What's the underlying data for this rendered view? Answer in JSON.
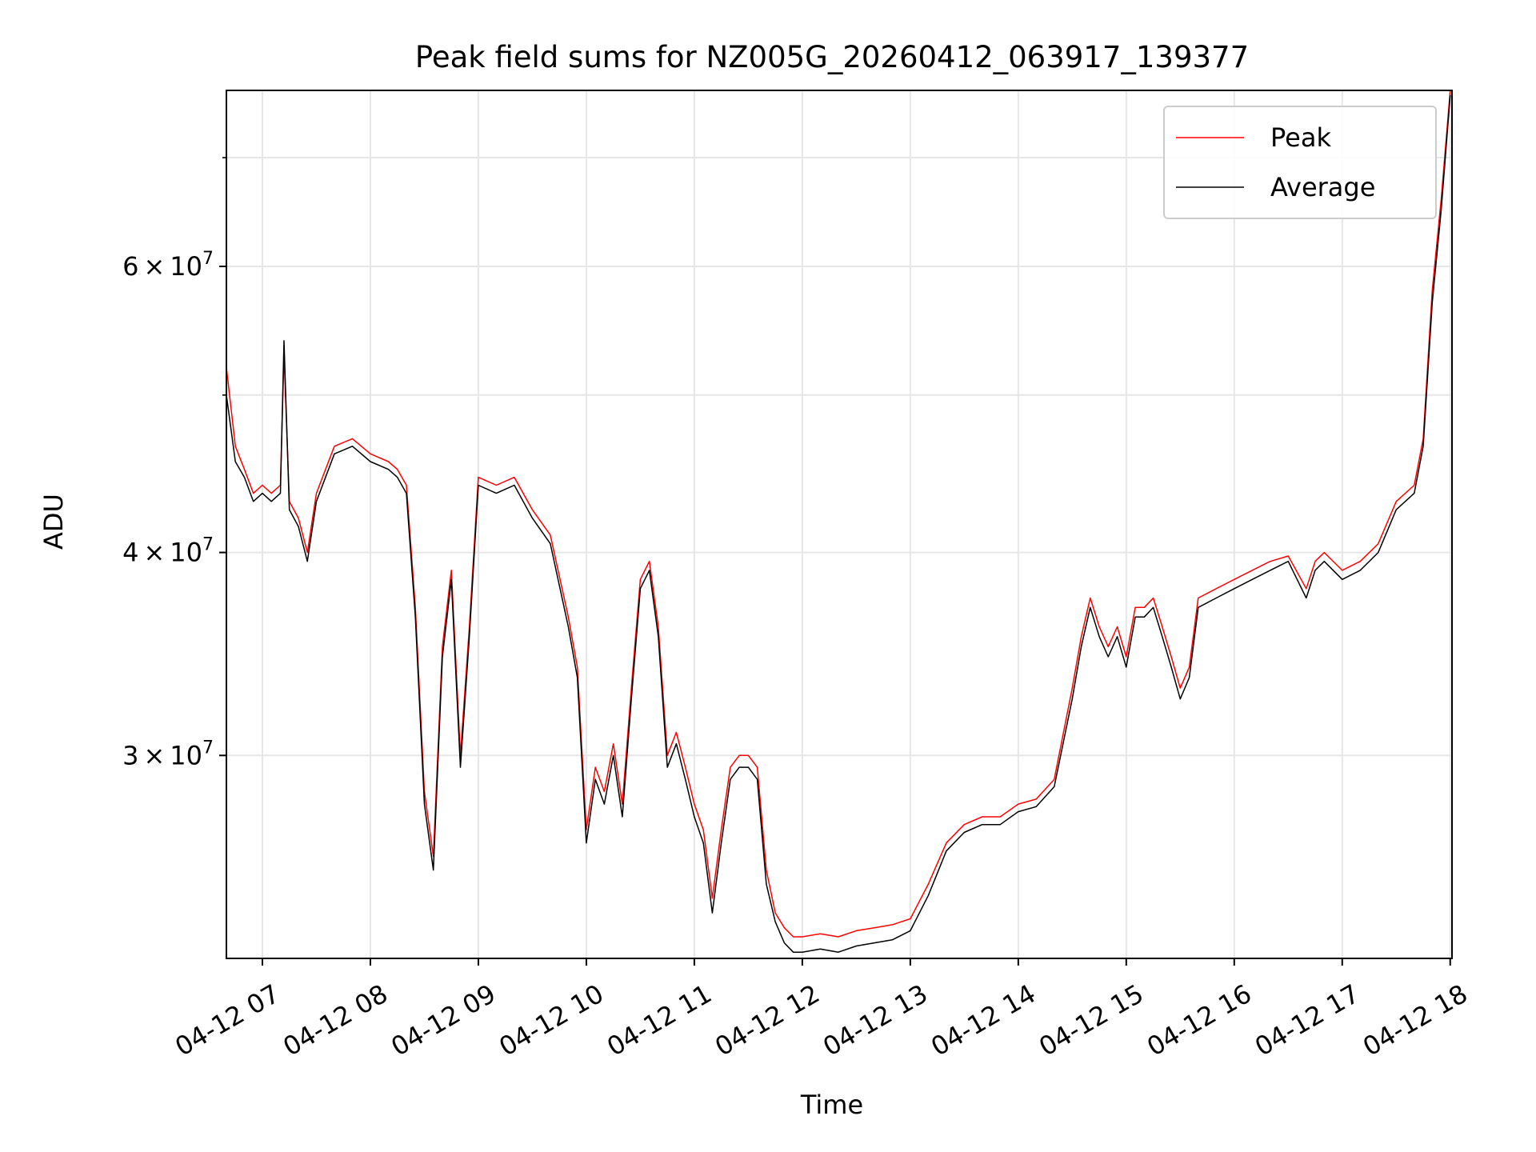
{
  "chart_data": {
    "type": "line",
    "title": "Peak field sums for NZ005G_20260412_063917_139377",
    "xlabel": "Time",
    "ylabel": "ADU",
    "y_scale": "log",
    "grid": true,
    "legend_position": "upper right",
    "xlim": [
      "2026-04-12 06:40",
      "2026-04-12 18:01"
    ],
    "ylim": [
      22500000,
      77000000
    ],
    "x_ticks": [
      {
        "value": "2026-04-12 07:00",
        "label": "04-12 07"
      },
      {
        "value": "2026-04-12 08:00",
        "label": "04-12 08"
      },
      {
        "value": "2026-04-12 09:00",
        "label": "04-12 09"
      },
      {
        "value": "2026-04-12 10:00",
        "label": "04-12 10"
      },
      {
        "value": "2026-04-12 11:00",
        "label": "04-12 11"
      },
      {
        "value": "2026-04-12 12:00",
        "label": "04-12 12"
      },
      {
        "value": "2026-04-12 13:00",
        "label": "04-12 13"
      },
      {
        "value": "2026-04-12 14:00",
        "label": "04-12 14"
      },
      {
        "value": "2026-04-12 15:00",
        "label": "04-12 15"
      },
      {
        "value": "2026-04-12 16:00",
        "label": "04-12 16"
      },
      {
        "value": "2026-04-12 17:00",
        "label": "04-12 17"
      },
      {
        "value": "2026-04-12 18:00",
        "label": "04-12 18"
      }
    ],
    "y_ticks": [
      {
        "value": 30000000,
        "base": "3",
        "exp": "7"
      },
      {
        "value": 40000000,
        "base": "4",
        "exp": "7"
      },
      {
        "value": 60000000,
        "base": "6",
        "exp": "7"
      }
    ],
    "y_minor_ticks": [
      50000000,
      70000000
    ],
    "series": [
      {
        "name": "Peak",
        "color": "#ff0000",
        "x": [
          "2026-04-12 06:40",
          "2026-04-12 06:45",
          "2026-04-12 06:50",
          "2026-04-12 06:55",
          "2026-04-12 07:00",
          "2026-04-12 07:05",
          "2026-04-12 07:10",
          "2026-04-12 07:12",
          "2026-04-12 07:15",
          "2026-04-12 07:20",
          "2026-04-12 07:25",
          "2026-04-12 07:30",
          "2026-04-12 07:40",
          "2026-04-12 07:50",
          "2026-04-12 08:00",
          "2026-04-12 08:10",
          "2026-04-12 08:15",
          "2026-04-12 08:20",
          "2026-04-12 08:25",
          "2026-04-12 08:30",
          "2026-04-12 08:35",
          "2026-04-12 08:40",
          "2026-04-12 08:45",
          "2026-04-12 08:50",
          "2026-04-12 08:55",
          "2026-04-12 09:00",
          "2026-04-12 09:10",
          "2026-04-12 09:20",
          "2026-04-12 09:30",
          "2026-04-12 09:40",
          "2026-04-12 09:50",
          "2026-04-12 09:55",
          "2026-04-12 10:00",
          "2026-04-12 10:05",
          "2026-04-12 10:10",
          "2026-04-12 10:15",
          "2026-04-12 10:20",
          "2026-04-12 10:25",
          "2026-04-12 10:30",
          "2026-04-12 10:35",
          "2026-04-12 10:40",
          "2026-04-12 10:45",
          "2026-04-12 10:50",
          "2026-04-12 10:55",
          "2026-04-12 11:00",
          "2026-04-12 11:05",
          "2026-04-12 11:10",
          "2026-04-12 11:15",
          "2026-04-12 11:20",
          "2026-04-12 11:25",
          "2026-04-12 11:30",
          "2026-04-12 11:35",
          "2026-04-12 11:40",
          "2026-04-12 11:45",
          "2026-04-12 11:50",
          "2026-04-12 11:55",
          "2026-04-12 12:00",
          "2026-04-12 12:10",
          "2026-04-12 12:20",
          "2026-04-12 12:30",
          "2026-04-12 12:40",
          "2026-04-12 12:50",
          "2026-04-12 13:00",
          "2026-04-12 13:10",
          "2026-04-12 13:20",
          "2026-04-12 13:30",
          "2026-04-12 13:40",
          "2026-04-12 13:50",
          "2026-04-12 14:00",
          "2026-04-12 14:10",
          "2026-04-12 14:20",
          "2026-04-12 14:30",
          "2026-04-12 14:35",
          "2026-04-12 14:40",
          "2026-04-12 14:45",
          "2026-04-12 14:50",
          "2026-04-12 14:55",
          "2026-04-12 15:00",
          "2026-04-12 15:05",
          "2026-04-12 15:10",
          "2026-04-12 15:15",
          "2026-04-12 15:20",
          "2026-04-12 15:25",
          "2026-04-12 15:30",
          "2026-04-12 15:35",
          "2026-04-12 15:40",
          "2026-04-12 15:50",
          "2026-04-12 16:00",
          "2026-04-12 16:10",
          "2026-04-12 16:20",
          "2026-04-12 16:30",
          "2026-04-12 16:40",
          "2026-04-12 16:45",
          "2026-04-12 16:50",
          "2026-04-12 17:00",
          "2026-04-12 17:10",
          "2026-04-12 17:20",
          "2026-04-12 17:30",
          "2026-04-12 17:40",
          "2026-04-12 17:45",
          "2026-04-12 17:50",
          "2026-04-12 17:55",
          "2026-04-12 18:00"
        ],
        "values": [
          52000000,
          46500000,
          45000000,
          43500000,
          44000000,
          43500000,
          44000000,
          53000000,
          43000000,
          42000000,
          40000000,
          43500000,
          46500000,
          47000000,
          46000000,
          45500000,
          45000000,
          44000000,
          37000000,
          28500000,
          26000000,
          35000000,
          39000000,
          30000000,
          36000000,
          44500000,
          44000000,
          44500000,
          42500000,
          41000000,
          36500000,
          34000000,
          27000000,
          29500000,
          28500000,
          30500000,
          28000000,
          33000000,
          38500000,
          39500000,
          36000000,
          30000000,
          31000000,
          29500000,
          28000000,
          27000000,
          24500000,
          27000000,
          29500000,
          30000000,
          30000000,
          29500000,
          25500000,
          24000000,
          23500000,
          23200000,
          23200000,
          23300000,
          23200000,
          23400000,
          23500000,
          23600000,
          23800000,
          25000000,
          26500000,
          27200000,
          27500000,
          27500000,
          28000000,
          28200000,
          29000000,
          33000000,
          35500000,
          37500000,
          36000000,
          35000000,
          36000000,
          34500000,
          37000000,
          37000000,
          37500000,
          36000000,
          34500000,
          33000000,
          34000000,
          37500000,
          38000000,
          38500000,
          39000000,
          39500000,
          39800000,
          38000000,
          39500000,
          40000000,
          39000000,
          39500000,
          40500000,
          43000000,
          44000000,
          47000000,
          58000000,
          66000000,
          77000000
        ]
      },
      {
        "name": "Average",
        "color": "#000000",
        "x": [
          "2026-04-12 06:40",
          "2026-04-12 06:45",
          "2026-04-12 06:50",
          "2026-04-12 06:55",
          "2026-04-12 07:00",
          "2026-04-12 07:05",
          "2026-04-12 07:10",
          "2026-04-12 07:12",
          "2026-04-12 07:15",
          "2026-04-12 07:20",
          "2026-04-12 07:25",
          "2026-04-12 07:30",
          "2026-04-12 07:40",
          "2026-04-12 07:50",
          "2026-04-12 08:00",
          "2026-04-12 08:10",
          "2026-04-12 08:15",
          "2026-04-12 08:20",
          "2026-04-12 08:25",
          "2026-04-12 08:30",
          "2026-04-12 08:35",
          "2026-04-12 08:40",
          "2026-04-12 08:45",
          "2026-04-12 08:50",
          "2026-04-12 08:55",
          "2026-04-12 09:00",
          "2026-04-12 09:10",
          "2026-04-12 09:20",
          "2026-04-12 09:30",
          "2026-04-12 09:40",
          "2026-04-12 09:50",
          "2026-04-12 09:55",
          "2026-04-12 10:00",
          "2026-04-12 10:05",
          "2026-04-12 10:10",
          "2026-04-12 10:15",
          "2026-04-12 10:20",
          "2026-04-12 10:25",
          "2026-04-12 10:30",
          "2026-04-12 10:35",
          "2026-04-12 10:40",
          "2026-04-12 10:45",
          "2026-04-12 10:50",
          "2026-04-12 10:55",
          "2026-04-12 11:00",
          "2026-04-12 11:05",
          "2026-04-12 11:10",
          "2026-04-12 11:15",
          "2026-04-12 11:20",
          "2026-04-12 11:25",
          "2026-04-12 11:30",
          "2026-04-12 11:35",
          "2026-04-12 11:40",
          "2026-04-12 11:45",
          "2026-04-12 11:50",
          "2026-04-12 11:55",
          "2026-04-12 12:00",
          "2026-04-12 12:10",
          "2026-04-12 12:20",
          "2026-04-12 12:30",
          "2026-04-12 12:40",
          "2026-04-12 12:50",
          "2026-04-12 13:00",
          "2026-04-12 13:10",
          "2026-04-12 13:20",
          "2026-04-12 13:30",
          "2026-04-12 13:40",
          "2026-04-12 13:50",
          "2026-04-12 14:00",
          "2026-04-12 14:10",
          "2026-04-12 14:20",
          "2026-04-12 14:30",
          "2026-04-12 14:35",
          "2026-04-12 14:40",
          "2026-04-12 14:45",
          "2026-04-12 14:50",
          "2026-04-12 14:55",
          "2026-04-12 15:00",
          "2026-04-12 15:05",
          "2026-04-12 15:10",
          "2026-04-12 15:15",
          "2026-04-12 15:20",
          "2026-04-12 15:25",
          "2026-04-12 15:30",
          "2026-04-12 15:35",
          "2026-04-12 15:40",
          "2026-04-12 15:50",
          "2026-04-12 16:00",
          "2026-04-12 16:10",
          "2026-04-12 16:20",
          "2026-04-12 16:30",
          "2026-04-12 16:40",
          "2026-04-12 16:45",
          "2026-04-12 16:50",
          "2026-04-12 17:00",
          "2026-04-12 17:10",
          "2026-04-12 17:20",
          "2026-04-12 17:30",
          "2026-04-12 17:40",
          "2026-04-12 17:45",
          "2026-04-12 17:50",
          "2026-04-12 17:55",
          "2026-04-12 18:00"
        ],
        "values": [
          50000000,
          45500000,
          44500000,
          43000000,
          43500000,
          43000000,
          43500000,
          54000000,
          42500000,
          41500000,
          39500000,
          43000000,
          46000000,
          46500000,
          45500000,
          45000000,
          44500000,
          43500000,
          36500000,
          28000000,
          25500000,
          34500000,
          38500000,
          29500000,
          35500000,
          44000000,
          43500000,
          44000000,
          42000000,
          40500000,
          36000000,
          33500000,
          26500000,
          29000000,
          28000000,
          30000000,
          27500000,
          32500000,
          38000000,
          39000000,
          35500000,
          29500000,
          30500000,
          29000000,
          27500000,
          26500000,
          24000000,
          26500000,
          29000000,
          29500000,
          29500000,
          29000000,
          25000000,
          23700000,
          23000000,
          22700000,
          22700000,
          22800000,
          22700000,
          22900000,
          23000000,
          23100000,
          23400000,
          24600000,
          26200000,
          26900000,
          27200000,
          27200000,
          27700000,
          27900000,
          28700000,
          32500000,
          35000000,
          37000000,
          35500000,
          34500000,
          35500000,
          34000000,
          36500000,
          36500000,
          37000000,
          35500000,
          34000000,
          32500000,
          33500000,
          37000000,
          37500000,
          38000000,
          38500000,
          39000000,
          39500000,
          37500000,
          39000000,
          39500000,
          38500000,
          39000000,
          40000000,
          42500000,
          43500000,
          46500000,
          57000000,
          65000000,
          76500000
        ]
      }
    ]
  }
}
